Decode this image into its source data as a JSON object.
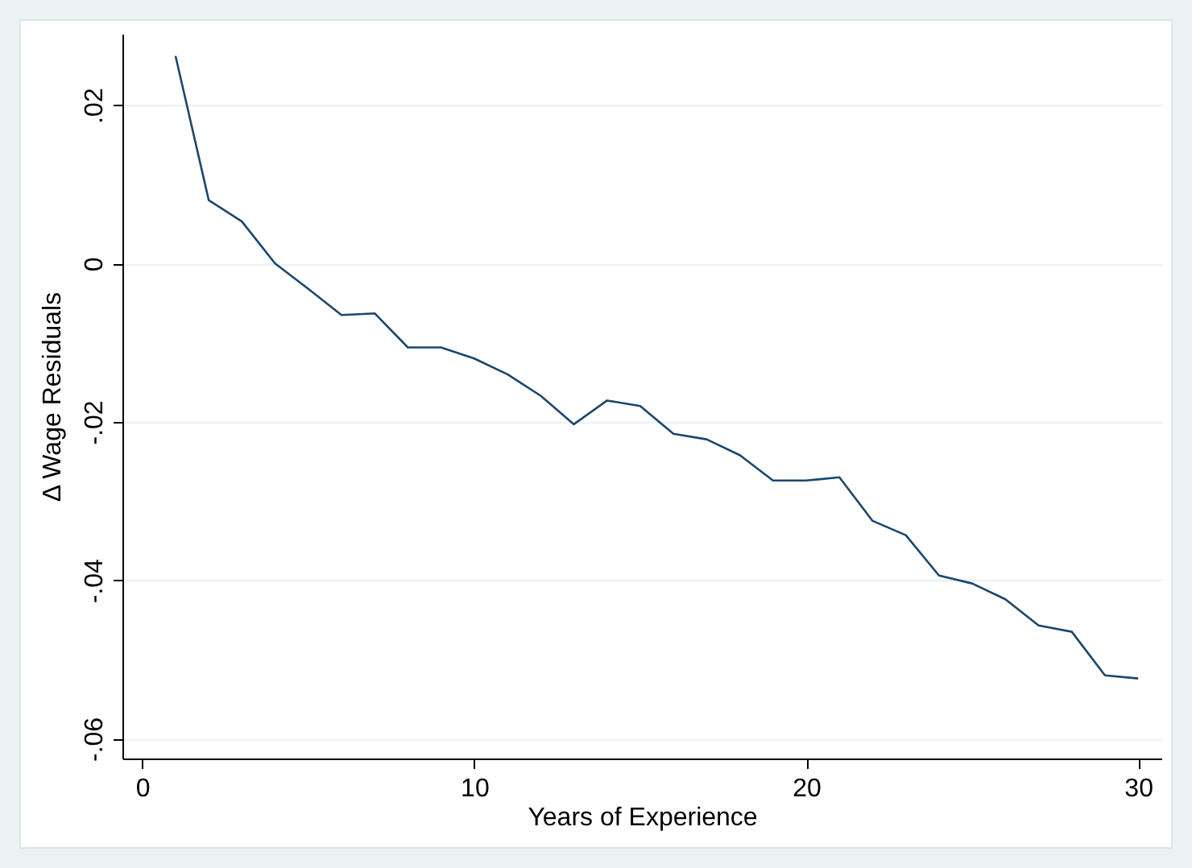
{
  "chart_data": {
    "type": "line",
    "xlabel": "Years of Experience",
    "ylabel": "Δ Wage Residuals",
    "x": [
      1,
      2,
      3,
      4,
      5,
      6,
      7,
      8,
      9,
      10,
      11,
      12,
      13,
      14,
      15,
      16,
      17,
      18,
      19,
      20,
      21,
      22,
      23,
      24,
      25,
      26,
      27,
      28,
      29,
      30
    ],
    "series": [
      {
        "color": "#1a476f",
        "values": [
          0.0262,
          0.008,
          0.0053,
          0.0,
          -0.0032,
          -0.0065,
          -0.0063,
          -0.0106,
          -0.0106,
          -0.012,
          -0.014,
          -0.0167,
          -0.0203,
          -0.0173,
          -0.018,
          -0.0215,
          -0.0222,
          -0.0242,
          -0.0274,
          -0.0274,
          -0.027,
          -0.0325,
          -0.0343,
          -0.0394,
          -0.0404,
          -0.0424,
          -0.0457,
          -0.0465,
          -0.052,
          -0.0524
        ]
      }
    ],
    "xlim": [
      -0.6,
      30.7
    ],
    "xticks": [
      0,
      10,
      20,
      30
    ],
    "ylim": [
      -0.0625,
      0.029
    ],
    "yticks": [
      {
        "value": -0.06,
        "label": "-.06"
      },
      {
        "value": -0.04,
        "label": "-.04"
      },
      {
        "value": -0.02,
        "label": "-.02"
      },
      0,
      {
        "value": 0.02,
        "label": ".02"
      }
    ],
    "grid": "y",
    "marker": "none",
    "line_style": "solid"
  }
}
